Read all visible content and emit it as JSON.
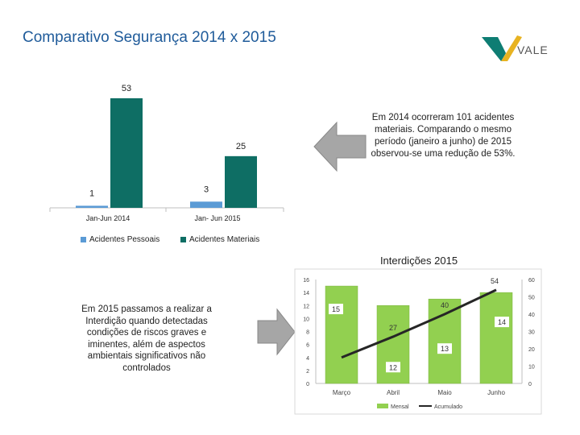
{
  "page": {
    "title": "Comparativo Segurança 2014 x 2015",
    "brand": "VALE",
    "note_top": "Em 2014 ocorreram 101 acidentes materiais. Comparando o mesmo período (janeiro a junho) de 2015 observou-se uma redução de 53%.",
    "note_bottom": "Em 2015 passamos a realizar a Interdição quando detectadas condições de riscos graves e iminentes, além de aspectos ambientais significativos não controlados",
    "colors": {
      "blue": "#5b9bd5",
      "teal": "#0e6e64",
      "green": "#92d050",
      "title": "#1f5b9a",
      "arrow": "#9a9a9a"
    }
  },
  "chart_data": [
    {
      "type": "bar",
      "title": "",
      "categories": [
        "Jan-Jun 2014",
        "Jan- Jun 2015"
      ],
      "series": [
        {
          "name": "Acidentes Pessoais",
          "values": [
            1,
            3
          ]
        },
        {
          "name": "Acidentes Materiais",
          "values": [
            53,
            25
          ]
        }
      ],
      "ylim": [
        0,
        53
      ],
      "legend": "bottom"
    },
    {
      "type": "bar",
      "title": "Interdições 2015",
      "categories": [
        "Março",
        "Abril",
        "Maio",
        "Junho"
      ],
      "series": [
        {
          "name": "Mensal",
          "type": "bar",
          "axis": "left",
          "values": [
            15,
            12,
            13,
            14
          ]
        },
        {
          "name": "Acumulado",
          "type": "line",
          "axis": "right",
          "values": [
            15,
            27,
            40,
            54
          ]
        }
      ],
      "y_left": {
        "ylim": [
          0,
          16
        ],
        "ticks": [
          "0",
          "2",
          "4",
          "6",
          "8",
          "10",
          "12",
          "14",
          "16"
        ]
      },
      "y_right": {
        "ylim": [
          0,
          60
        ],
        "ticks": [
          "0",
          "10",
          "20",
          "30",
          "40",
          "50",
          "60"
        ]
      },
      "grid": false,
      "legend": "bottom"
    }
  ]
}
